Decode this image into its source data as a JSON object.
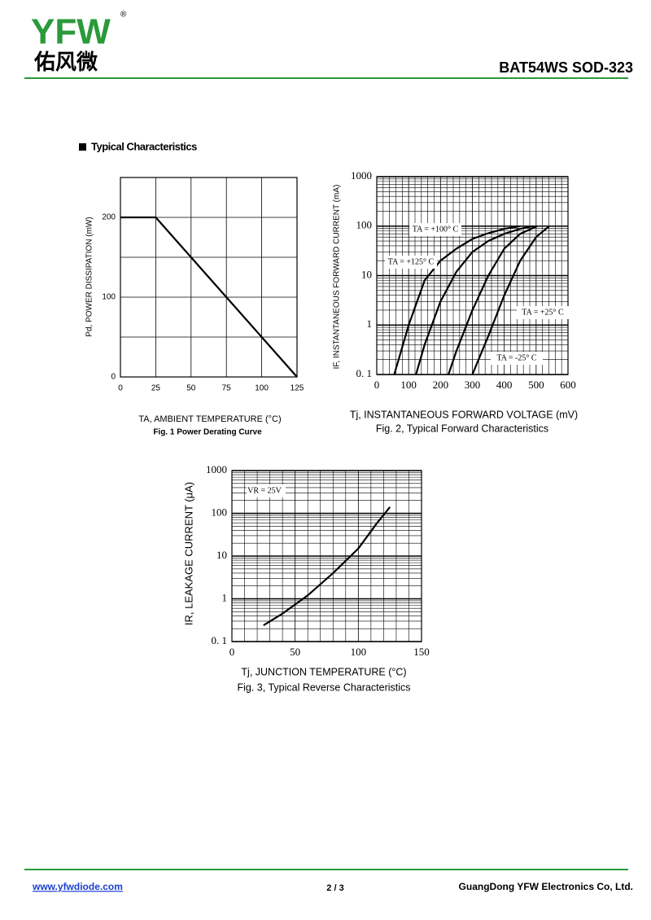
{
  "header": {
    "logo": "YFW",
    "registered": "®",
    "logo_cn": "佑风微",
    "part": "BAT54WS  SOD-323"
  },
  "section": "Typical Characteristics",
  "chart_data": [
    {
      "type": "line",
      "caption": "Fig. 1  Power Derating Curve",
      "x_label": "TA, AMBIENT TEMPERATURE (°C)",
      "y_label": "Pd, POWER DISSIPATION (mW)",
      "x": [
        0,
        25,
        125
      ],
      "values": [
        200,
        200,
        0
      ],
      "color": "#000000",
      "xlim": [
        0,
        125
      ],
      "xticks": [
        0,
        25,
        50,
        75,
        100,
        125
      ],
      "ylim": [
        0,
        250
      ],
      "yticks": [
        0,
        100,
        200
      ],
      "yminor": [
        50,
        150,
        250
      ],
      "grid": true,
      "log_y": false
    },
    {
      "type": "line",
      "caption": "Fig. 2, Typical Forward Characteristics",
      "x_label": "Tj, INSTANTANEOUS FORWARD VOLTAGE (mV)",
      "y_label": "IF, INSTANTANEOUS FORWARD CURRENT (mA)",
      "series": [
        {
          "name": "TA = +125° C",
          "color": "#000000",
          "x": [
            55,
            100,
            150,
            200,
            250,
            300,
            350,
            400,
            450
          ],
          "values": [
            0.1,
            1,
            8,
            20,
            35,
            55,
            72,
            88,
            100
          ]
        },
        {
          "name": "TA = +100° C",
          "color": "#000000",
          "x": [
            123,
            150,
            200,
            250,
            300,
            350,
            400,
            450,
            490
          ],
          "values": [
            0.1,
            0.4,
            3,
            12,
            30,
            50,
            70,
            88,
            100
          ]
        },
        {
          "name": "TA = +25° C",
          "color": "#000000",
          "x": [
            225,
            250,
            300,
            350,
            400,
            450,
            503
          ],
          "values": [
            0.1,
            0.3,
            2,
            10,
            35,
            70,
            100
          ]
        },
        {
          "name": "TA = -25° C",
          "color": "#000000",
          "x": [
            300,
            350,
            400,
            450,
            500,
            541
          ],
          "values": [
            0.1,
            0.6,
            4,
            20,
            60,
            100
          ]
        }
      ],
      "xlim": [
        0,
        600
      ],
      "xticks": [
        0,
        100,
        200,
        300,
        400,
        500,
        600
      ],
      "ylim": [
        0.1,
        1000
      ],
      "yticks": [
        {
          "value": 0.1,
          "label": "0. 1"
        },
        1,
        10,
        100,
        1000
      ],
      "grid": true,
      "log_y": true
    },
    {
      "type": "line",
      "caption": "Fig. 3, Typical Reverse Characteristics",
      "x_label": "Tj, JUNCTION TEMPERATURE (°C)",
      "y_label": "IR, LEAKAGE CURRENT (μA)",
      "annotation": "VR = 25V",
      "x": [
        25,
        40,
        60,
        80,
        100,
        115,
        125
      ],
      "values": [
        0.24,
        0.45,
        1.2,
        4,
        15,
        60,
        140
      ],
      "color": "#000000",
      "xlim": [
        0,
        150
      ],
      "xticks": [
        0,
        50,
        100,
        150
      ],
      "ylim": [
        0.1,
        1000
      ],
      "yticks": [
        {
          "value": 0.1,
          "label": "0. 1"
        },
        1,
        10,
        100,
        1000
      ],
      "grid": true,
      "log_y": true
    }
  ],
  "footer": {
    "url": "www.yfwdiode.com",
    "page": "2 / 3",
    "company": "GuangDong YFW Electronics Co, Ltd."
  }
}
